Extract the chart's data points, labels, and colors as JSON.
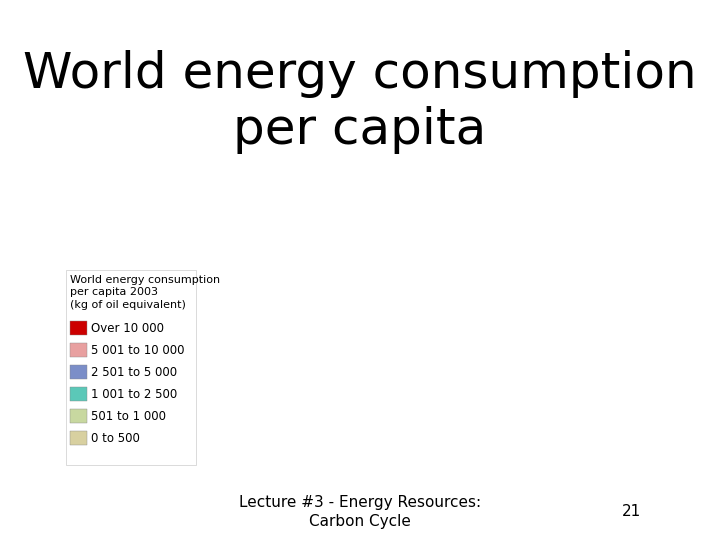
{
  "title": "World energy consumption\nper capita",
  "title_fontsize": 36,
  "footer_text": "Lecture #3 - Energy Resources:\nCarbon Cycle",
  "footer_number": "21",
  "footer_fontsize": 11,
  "legend_title": "World energy consumption\nper capita 2003\n(kg of oil equivalent)",
  "legend_title_fontsize": 8,
  "legend_label_fontsize": 8.5,
  "legend_items": [
    {
      "label": "Over 10 000",
      "color": "#cc0000"
    },
    {
      "label": "5 001 to 10 000",
      "color": "#e8a0a0"
    },
    {
      "label": "2 501 to 5 000",
      "color": "#7b8ec8"
    },
    {
      "label": "1 001 to 2 500",
      "color": "#5bc8b8"
    },
    {
      "label": "501 to 1 000",
      "color": "#c8d8a0"
    },
    {
      "label": "0 to 500",
      "color": "#d8d0a0"
    }
  ],
  "background_color": "#ffffff",
  "map_image_placeholder": true
}
